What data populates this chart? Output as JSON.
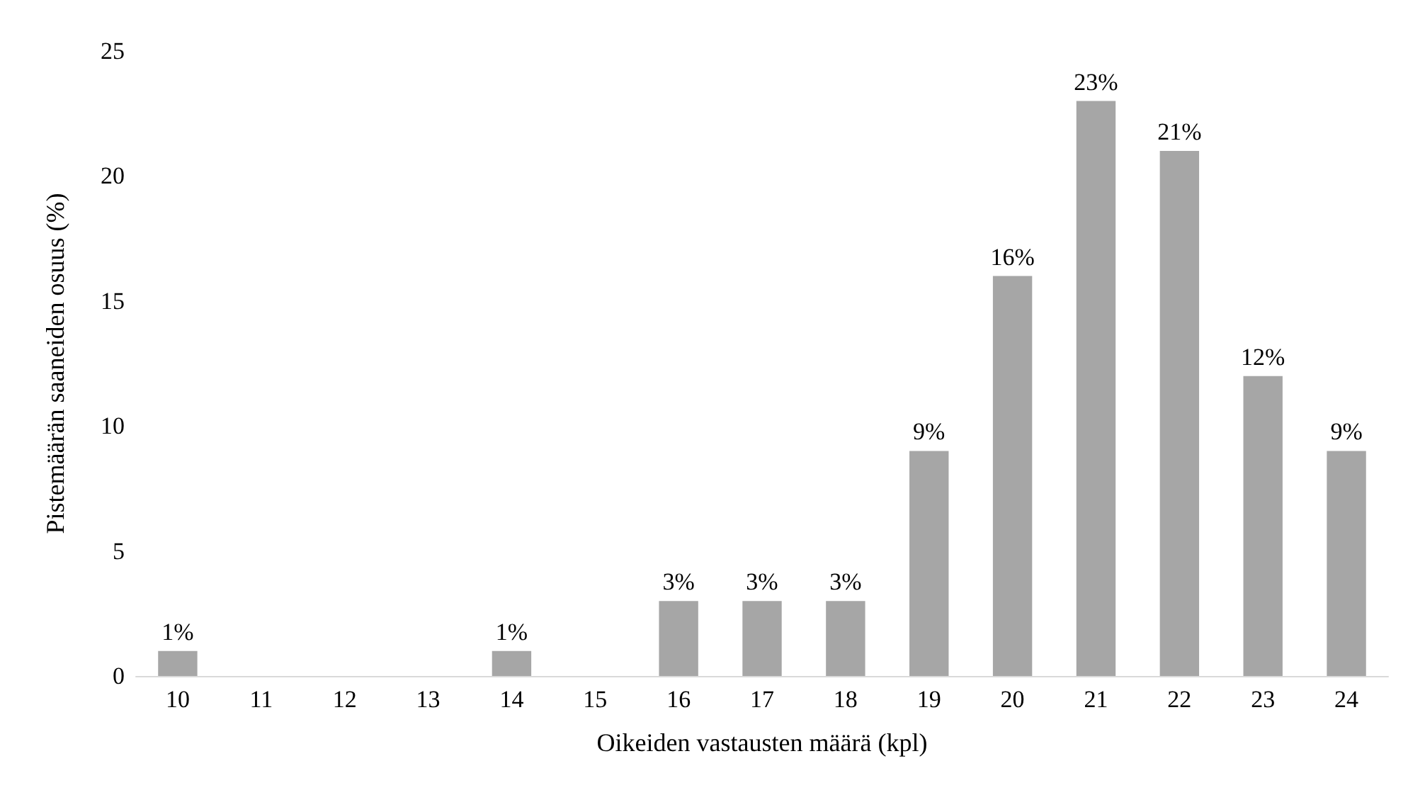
{
  "chart_data": {
    "type": "bar",
    "xlabel": "Oikeiden vastausten määrä (kpl)",
    "ylabel": "Pistemäärän saaneiden osuus (%)",
    "categories": [
      "10",
      "11",
      "12",
      "13",
      "14",
      "15",
      "16",
      "17",
      "18",
      "19",
      "20",
      "21",
      "22",
      "23",
      "24"
    ],
    "values": [
      1,
      0,
      0,
      0,
      1,
      0,
      3,
      3,
      3,
      9,
      16,
      23,
      21,
      12,
      9
    ],
    "value_labels": [
      "1%",
      null,
      null,
      null,
      "1%",
      null,
      "3%",
      "3%",
      "3%",
      "9%",
      "16%",
      "23%",
      "21%",
      "12%",
      "9%"
    ],
    "color": "#a6a6a6",
    "ylim": [
      0,
      25
    ],
    "yticks": [
      0,
      5,
      10,
      15,
      20,
      25
    ],
    "grid": false
  }
}
